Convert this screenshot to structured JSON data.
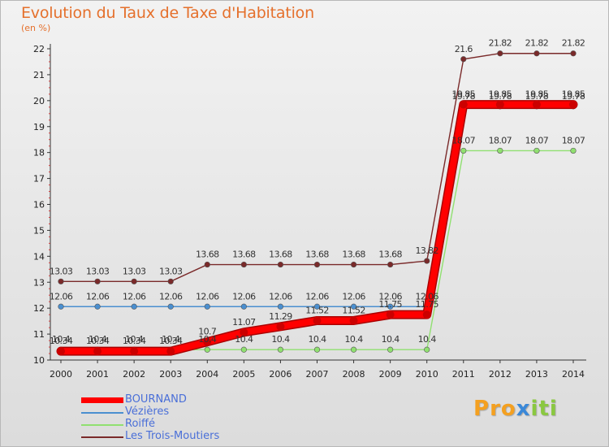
{
  "chart_data": {
    "type": "line",
    "title": "Evolution du Taux de Taxe d'Habitation",
    "subtitle": "(en %)",
    "x": [
      "2000",
      "2001",
      "2002",
      "2003",
      "2004",
      "2005",
      "2006",
      "2007",
      "2008",
      "2009",
      "2010",
      "2011",
      "2012",
      "2013",
      "2014"
    ],
    "y_ticks": [
      "10",
      "11",
      "12",
      "13",
      "14",
      "15",
      "16",
      "17",
      "18",
      "19",
      "20",
      "21",
      "22"
    ],
    "ylim": [
      10,
      22
    ],
    "grid": false,
    "legend_position": "bottom-left",
    "series": [
      {
        "name": "BOURNAND",
        "color": "#ff0000",
        "values": [
          10.34,
          10.34,
          10.34,
          10.34,
          10.7,
          11.07,
          11.29,
          11.52,
          11.52,
          11.75,
          11.75,
          19.85,
          19.85,
          19.85,
          19.85
        ],
        "labels": [
          "10.34",
          "10.34",
          "10.34",
          "10.34",
          "10.7",
          "11.07",
          "11.29",
          "11.52",
          "11.52",
          "11.75",
          "11.75",
          "19.85",
          "19.85",
          "19.85",
          "19.85"
        ]
      },
      {
        "name": "Vézières",
        "color": "#4a8fd0",
        "values": [
          12.06,
          12.06,
          12.06,
          12.06,
          12.06,
          12.06,
          12.06,
          12.06,
          12.06,
          12.06,
          12.06,
          19.78,
          19.78,
          19.78,
          19.78
        ],
        "labels": [
          "12.06",
          "12.06",
          "12.06",
          "12.06",
          "12.06",
          "12.06",
          "12.06",
          "12.06",
          "12.06",
          "12.06",
          "12.06",
          "19.78",
          "19.78",
          "19.78",
          "19.78"
        ]
      },
      {
        "name": "Roiffé",
        "color": "#90e070",
        "values": [
          10.4,
          10.4,
          10.4,
          10.4,
          10.4,
          10.4,
          10.4,
          10.4,
          10.4,
          10.4,
          10.4,
          18.07,
          18.07,
          18.07,
          18.07
        ],
        "labels": [
          "10.4",
          "10.4",
          "10.4",
          "10.4",
          "10.4",
          "10.4",
          "10.4",
          "10.4",
          "10.4",
          "10.4",
          "10.4",
          "18.07",
          "18.07",
          "18.07",
          "18.07"
        ]
      },
      {
        "name": "Les Trois-Moutiers",
        "color": "#7a2a2a",
        "values": [
          13.03,
          13.03,
          13.03,
          13.03,
          13.68,
          13.68,
          13.68,
          13.68,
          13.68,
          13.68,
          13.82,
          21.6,
          21.82,
          21.82,
          21.82
        ],
        "labels": [
          "13.03",
          "13.03",
          "13.03",
          "13.03",
          "13.68",
          "13.68",
          "13.68",
          "13.68",
          "13.68",
          "13.68",
          "13.82",
          "21.6",
          "21.82",
          "21.82",
          "21.82"
        ]
      }
    ]
  },
  "brand": {
    "letters": [
      "P",
      "r",
      "o",
      "x",
      "i",
      "t",
      "i"
    ],
    "colors": [
      "#f4a020",
      "#f4a020",
      "#f4a020",
      "#3a88d8",
      "#8ac840",
      "#8ac840",
      "#8ac840"
    ]
  }
}
